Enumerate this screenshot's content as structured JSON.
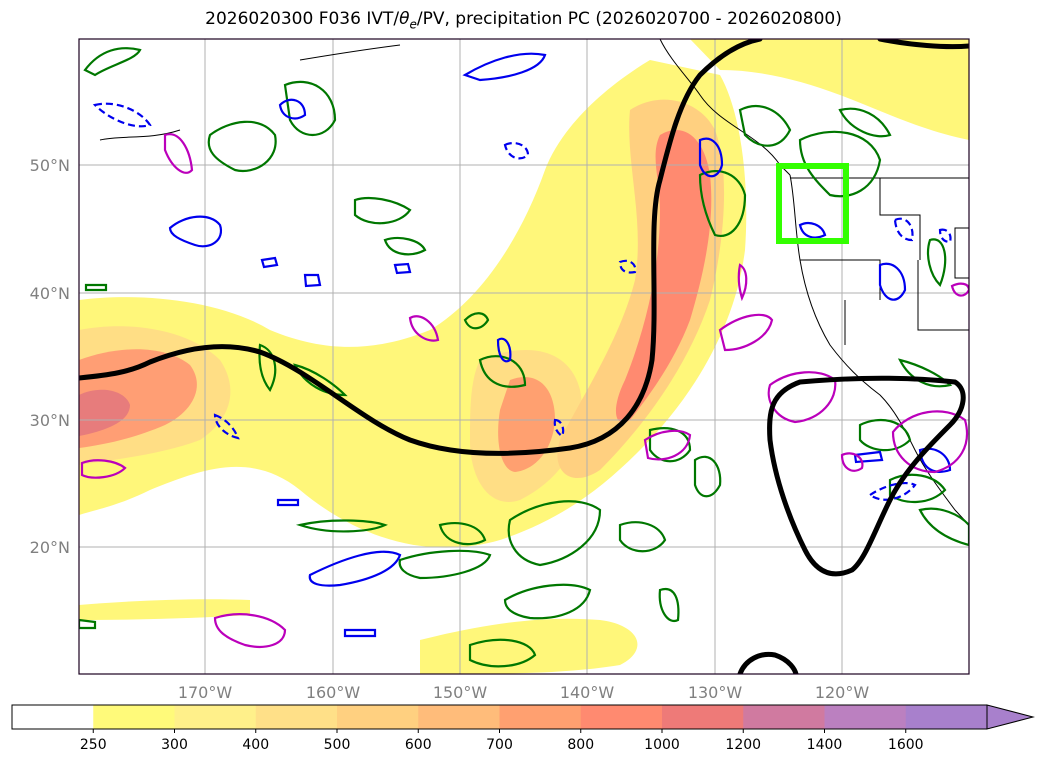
{
  "title": {
    "before": "2026020300 F036 IVT/",
    "theta": "θ",
    "theta_sub": "e",
    "after": "/PV, precipitation PC (2026020700 - 2026020800)"
  },
  "axes": {
    "lat_labels": [
      "50°N",
      "40°N",
      "30°N",
      "20°N"
    ],
    "lon_labels": [
      "170°W",
      "160°W",
      "150°W",
      "140°W",
      "130°W",
      "120°W"
    ]
  },
  "colorbar": {
    "ticks": [
      "250",
      "300",
      "400",
      "500",
      "600",
      "700",
      "800",
      "1000",
      "1200",
      "1400",
      "1600"
    ],
    "colors": [
      "#ffffff",
      "#fffa7a",
      "#fff08a",
      "#ffe088",
      "#ffd080",
      "#ffbc7a",
      "#ffa070",
      "#ff8a70",
      "#ee7a78",
      "#d07aa0",
      "#bb80c0",
      "#a880cc"
    ],
    "extend": "max"
  },
  "legend_colors": {
    "ivt_low": "#fffa7a",
    "ivt_high": "#ff8a70",
    "theta_e_contour": "#000000",
    "pv_positive": "#007700",
    "pv_negative": "#0000ee",
    "precip_pc": "#bb00bb",
    "highlight_box": "#33ff00"
  }
}
